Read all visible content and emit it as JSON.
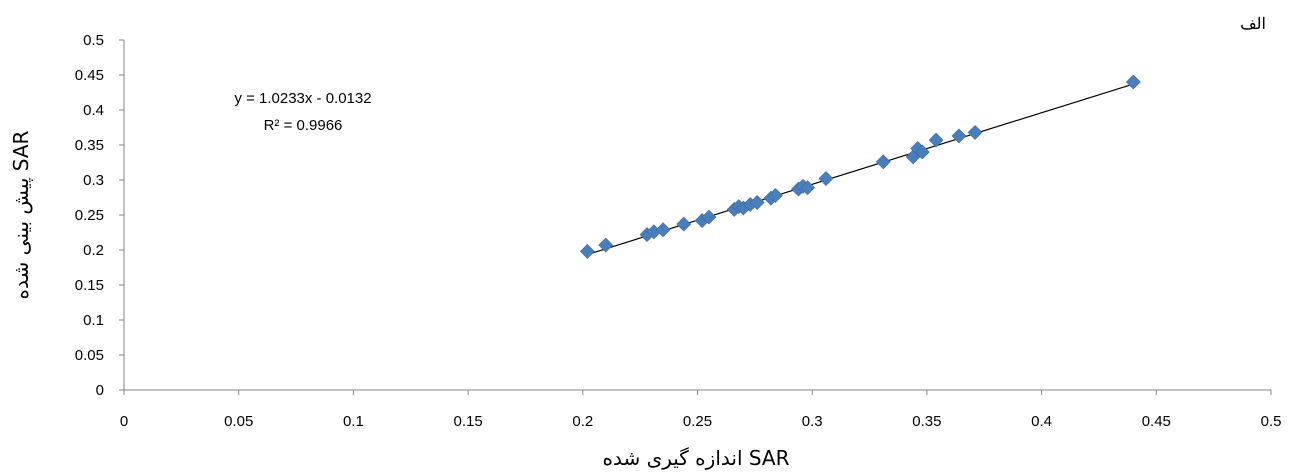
{
  "chart_data": {
    "type": "scatter",
    "panel_label": "الف",
    "xlabel": "اندازه گیری شده SAR",
    "ylabel": "پیش بینی شده SAR",
    "xlim": [
      0,
      0.5
    ],
    "ylim": [
      0,
      0.5
    ],
    "xticks": [
      "0",
      "0.05",
      "0.1",
      "0.15",
      "0.2",
      "0.25",
      "0.3",
      "0.35",
      "0.4",
      "0.45",
      "0.5"
    ],
    "yticks": [
      "0",
      "0.05",
      "0.1",
      "0.15",
      "0.2",
      "0.25",
      "0.3",
      "0.35",
      "0.4",
      "0.45",
      "0.5"
    ],
    "grid": false,
    "marker_color": "#4a7ebb",
    "trendline": {
      "slope": 1.0233,
      "intercept": -0.0132,
      "x_range": [
        0.202,
        0.44
      ]
    },
    "equation_text": "y = 1.0233x - 0.0132",
    "r2_text": "R² = 0.9966",
    "points": [
      [
        0.202,
        0.198
      ],
      [
        0.21,
        0.207
      ],
      [
        0.228,
        0.222
      ],
      [
        0.231,
        0.226
      ],
      [
        0.235,
        0.229
      ],
      [
        0.244,
        0.237
      ],
      [
        0.252,
        0.242
      ],
      [
        0.255,
        0.247
      ],
      [
        0.266,
        0.258
      ],
      [
        0.268,
        0.262
      ],
      [
        0.27,
        0.26
      ],
      [
        0.273,
        0.265
      ],
      [
        0.276,
        0.268
      ],
      [
        0.282,
        0.274
      ],
      [
        0.284,
        0.278
      ],
      [
        0.294,
        0.287
      ],
      [
        0.296,
        0.291
      ],
      [
        0.298,
        0.289
      ],
      [
        0.306,
        0.302
      ],
      [
        0.331,
        0.326
      ],
      [
        0.344,
        0.333
      ],
      [
        0.346,
        0.345
      ],
      [
        0.348,
        0.34
      ],
      [
        0.354,
        0.357
      ],
      [
        0.364,
        0.363
      ],
      [
        0.371,
        0.368
      ],
      [
        0.44,
        0.44
      ]
    ]
  }
}
